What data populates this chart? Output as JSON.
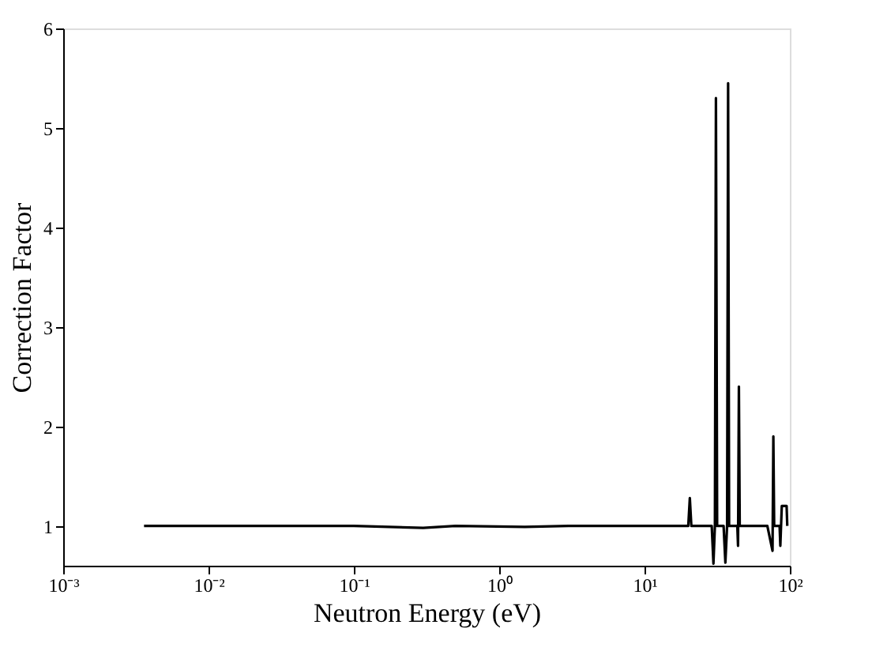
{
  "chart_data": {
    "type": "line",
    "xlabel": "Neutron Energy (eV)",
    "ylabel": "Correction Factor",
    "log": "x",
    "x": [
      0.0036,
      0.1,
      0.3,
      0.5,
      1.5,
      3,
      10,
      20,
      20.5,
      21,
      29,
      29.8,
      30.5,
      31,
      31.6,
      35,
      36,
      37,
      37.6,
      38.2,
      43.5,
      44,
      44.6,
      45.2,
      70,
      76,
      77,
      78,
      85,
      86,
      88,
      95,
      96
    ],
    "series": [
      {
        "color": "#000000",
        "values": [
          1.0,
          1.0,
          0.98,
          1.0,
          0.99,
          1.0,
          1.0,
          1.0,
          1.28,
          1.0,
          1.0,
          0.62,
          1.0,
          5.3,
          1.0,
          1.0,
          0.63,
          1.0,
          5.45,
          1.0,
          1.0,
          0.8,
          2.4,
          1.0,
          1.0,
          0.75,
          1.9,
          1.0,
          1.0,
          0.8,
          1.2,
          1.2,
          1.0
        ]
      }
    ],
    "xlim": [
      0.001,
      100
    ],
    "xticks": [
      {
        "value": 0.001,
        "label": "10⁻³"
      },
      {
        "value": 0.01,
        "label": "10⁻²"
      },
      {
        "value": 0.1,
        "label": "10⁻¹"
      },
      {
        "value": 1,
        "label": "10⁰"
      },
      {
        "value": 10,
        "label": "10¹"
      },
      {
        "value": 100,
        "label": "10²"
      }
    ],
    "ylim": [
      0.6,
      6
    ],
    "yticks": [
      1,
      2,
      3,
      4,
      5,
      6
    ],
    "grid": false,
    "marker": "none",
    "line_style": "solid"
  }
}
